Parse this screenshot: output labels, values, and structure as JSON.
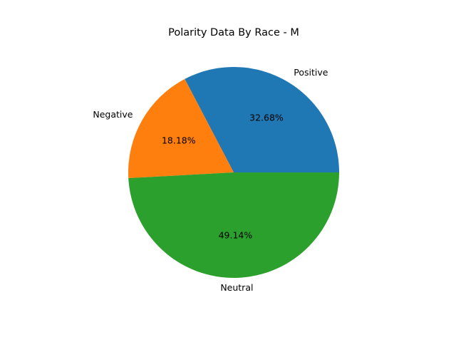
{
  "chart_data": {
    "type": "pie",
    "title": "Polarity Data By Race - M",
    "labels": [
      "Positive",
      "Negative",
      "Neutral"
    ],
    "values": [
      32.68,
      18.18,
      49.14
    ],
    "value_labels": [
      "32.68%",
      "18.18%",
      "49.14%"
    ],
    "colors": [
      "#1f77b4",
      "#ff7f0e",
      "#2ca02c"
    ],
    "start_angle_deg": 0,
    "direction": "counterclockwise",
    "legend": false
  }
}
